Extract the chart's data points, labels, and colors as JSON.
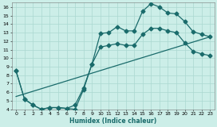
{
  "xlabel": "Humidex (Indice chaleur)",
  "bg_color": "#cceee8",
  "grid_color": "#aad8d0",
  "line_color": "#1a6b6b",
  "xlim": [
    -0.5,
    23.5
  ],
  "ylim": [
    4,
    16.5
  ],
  "xticks": [
    0,
    1,
    2,
    3,
    4,
    5,
    6,
    7,
    8,
    9,
    10,
    11,
    12,
    13,
    14,
    15,
    16,
    17,
    18,
    19,
    20,
    21,
    22,
    23
  ],
  "yticks": [
    4,
    5,
    6,
    7,
    8,
    9,
    10,
    11,
    12,
    13,
    14,
    15,
    16
  ],
  "line1_x": [
    0,
    1,
    2,
    3,
    4,
    5,
    6,
    7,
    8,
    9,
    10,
    11,
    12,
    13,
    14,
    15,
    16,
    17,
    18,
    19,
    20,
    21,
    22,
    23
  ],
  "line1_y": [
    8.5,
    5.2,
    4.5,
    4.0,
    4.2,
    4.2,
    4.1,
    4.0,
    6.3,
    9.3,
    12.9,
    13.0,
    13.7,
    13.2,
    13.2,
    15.5,
    16.4,
    16.0,
    15.3,
    15.2,
    14.3,
    13.1,
    12.8,
    12.5
  ],
  "line2_x": [
    0,
    1,
    2,
    3,
    4,
    5,
    6,
    7,
    8,
    9,
    10,
    11,
    12,
    13,
    14,
    15,
    16,
    17,
    18,
    19,
    20,
    21,
    22,
    23
  ],
  "line2_y": [
    8.5,
    5.2,
    4.5,
    4.0,
    4.2,
    4.2,
    4.1,
    4.5,
    6.5,
    9.3,
    11.3,
    11.5,
    11.7,
    11.5,
    11.5,
    12.8,
    13.5,
    13.5,
    13.2,
    13.0,
    11.8,
    10.8,
    10.5,
    10.3
  ],
  "line3_x": [
    0,
    23
  ],
  "line3_y": [
    5.5,
    12.5
  ],
  "markersize": 2.5,
  "linewidth": 0.9
}
